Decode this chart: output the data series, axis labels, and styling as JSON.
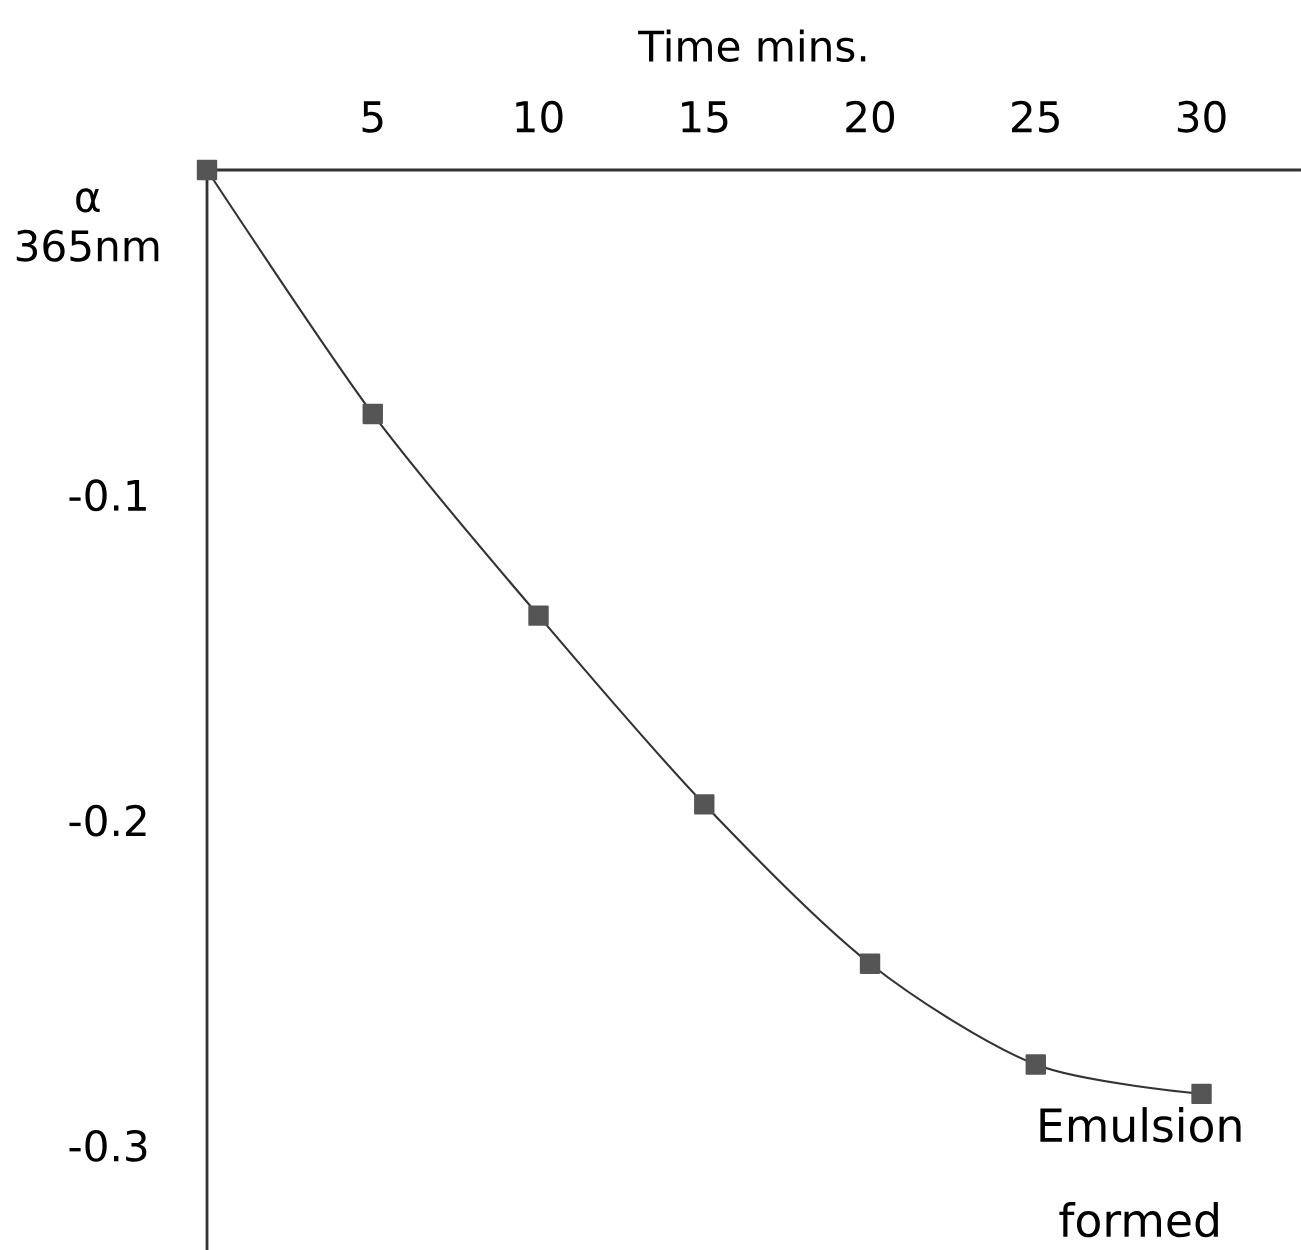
{
  "chart_data": {
    "type": "line",
    "xlabel": "Time mins.",
    "ylabel": "α 365nm",
    "x": [
      0,
      5,
      10,
      15,
      20,
      25,
      30
    ],
    "series": [
      {
        "color": "#555555",
        "values": [
          0,
          -0.075,
          -0.137,
          -0.195,
          -0.244,
          -0.275,
          -0.284
        ]
      }
    ],
    "xlim": [
      0,
      33
    ],
    "ylim": [
      -0.332,
      0
    ],
    "xticks": [
      5,
      10,
      15,
      20,
      25,
      30
    ],
    "yticks": [
      -0.1,
      -0.2,
      -0.3
    ],
    "marker": "square",
    "line_style": "solid",
    "annotations": [
      "Emulsion formed"
    ]
  }
}
